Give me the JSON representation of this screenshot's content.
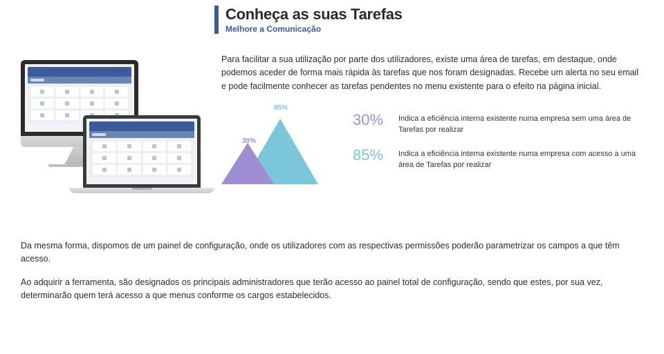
{
  "header": {
    "title": "Conheça as suas Tarefas",
    "subtitle": "Melhore a Comunicação",
    "accent_color": "#3b5b9a"
  },
  "intro": {
    "p1": "Para facilitar a sua utilização por parte dos utilizadores, existe uma área de tarefas, em destaque, onde podemos aceder de forma mais rápida às tarefas que nos foram designadas. Recebe um alerta no seu email e pode facilmente conhecer as tarefas pendentes no menu existente para o efeito na página inicial."
  },
  "chart": {
    "type": "triangle-comparison",
    "big": {
      "label": "85%",
      "value": 85,
      "color": "#7bc7d9",
      "label_color": "#7bc7d9"
    },
    "small": {
      "label": "30%",
      "value": 30,
      "color": "#9d8fd1",
      "label_color": "#9d8fd1"
    },
    "label_fontsize": 10
  },
  "legend": {
    "items": [
      {
        "pct": "30%",
        "color": "#9d8fd1",
        "text": "Indica a eficiência interna existente numa empresa sem uma área de Tarefas por realizar"
      },
      {
        "pct": "85%",
        "color": "#7bc7d9",
        "text": "Indica a eficiência interna existente numa empresa com acesso a uma área de Tarefas por realizar"
      }
    ]
  },
  "bottom": {
    "p1": "Da mesma forma, dispomos de um painel de configuração, onde os utilizadores com as respectivas permissões poderão parametrizar os campos a que têm acesso.",
    "p2": "Ao adquirir a ferramenta, são designados os principais administradores que terão acesso ao painel total de configuração, sendo que estes, por sua vez, determinarão quem terá acesso a que menus conforme os cargos estabelecidos."
  }
}
